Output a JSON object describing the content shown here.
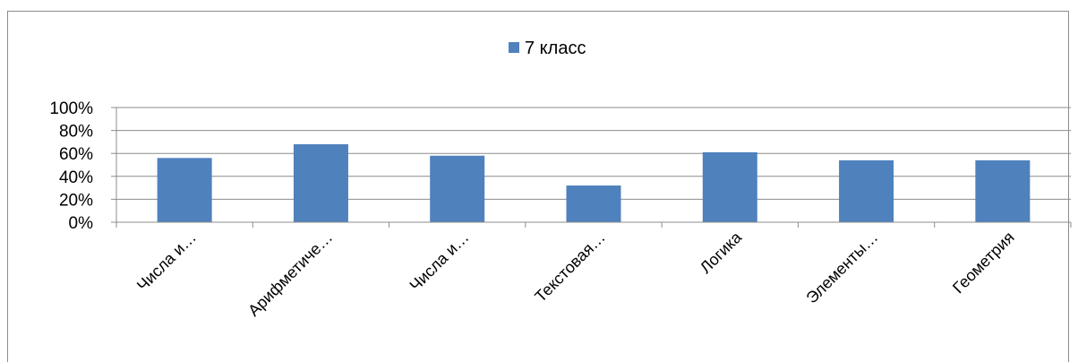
{
  "chart_data": {
    "type": "bar",
    "categories": [
      "Числа и…",
      "Арифметиче…",
      "Числа и…",
      "Текстовая…",
      "Логика",
      "Элементы…",
      "Геометрия"
    ],
    "series": [
      {
        "name": "7 класс",
        "values": [
          0.56,
          0.68,
          0.58,
          0.32,
          0.61,
          0.54,
          0.54
        ],
        "color": "#4f81bd"
      }
    ],
    "ylim": [
      0,
      1
    ],
    "yticks": [
      "0%",
      "20%",
      "40%",
      "60%",
      "80%",
      "100%"
    ],
    "grid": true,
    "legend_position": "top"
  }
}
